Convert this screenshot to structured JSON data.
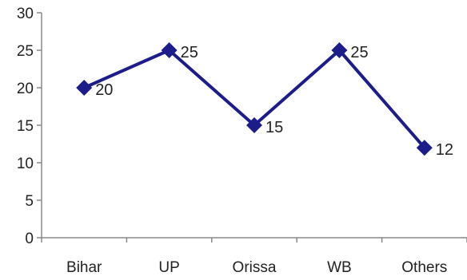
{
  "chart_data": {
    "type": "line",
    "categories": [
      "Bihar",
      "UP",
      "Orissa",
      "WB",
      "Others"
    ],
    "values": [
      20,
      25,
      15,
      25,
      12
    ],
    "title": "",
    "xlabel": "",
    "ylabel": "",
    "ylim": [
      0,
      30
    ],
    "yticks": [
      0,
      5,
      10,
      15,
      20,
      25,
      30
    ],
    "grid": false,
    "legend": "none",
    "series_color": "#1c1c8a",
    "axis_color": "#888888",
    "data_labels": [
      "20",
      "25",
      "15",
      "25",
      "12"
    ]
  }
}
